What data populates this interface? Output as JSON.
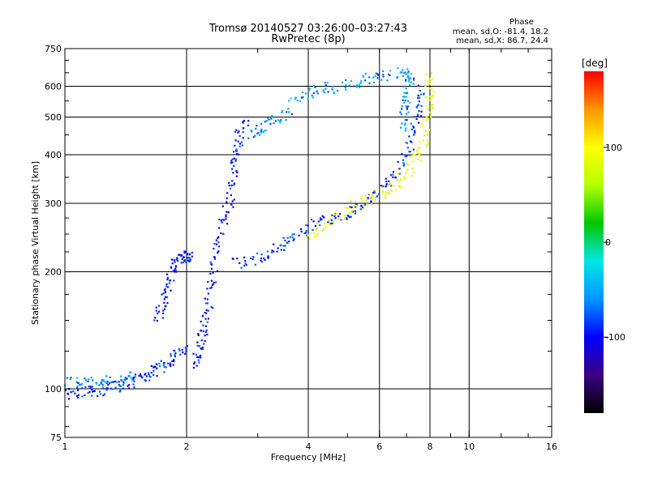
{
  "header": {
    "title_line1": "Tromsø 20140527 03:26:00–03:27:43",
    "title_line2": "RwPretec (8p)"
  },
  "phase_box": {
    "heading": "Phase",
    "line_o": "mean, sd,O: -81.4, 18.2",
    "line_x": "mean, sd,X: 86.7, 24.4"
  },
  "colorbar": {
    "label": "[deg]",
    "ticks": [
      "100",
      "0",
      "-100"
    ],
    "tick_values": [
      100,
      0,
      -100
    ],
    "range": [
      -180,
      180
    ],
    "colors": [
      "#000000",
      "#3c0082",
      "#0000ff",
      "#0096ff",
      "#00e6e6",
      "#00c800",
      "#b4ff00",
      "#ffff00",
      "#ff9600",
      "#ff0000"
    ]
  },
  "chart_data": {
    "type": "scatter",
    "title": "Tromsø 20140527 03:26:00–03:27:43",
    "subtitle": "RwPretec (8p)",
    "xlabel": "Frequency [MHz]",
    "ylabel": "Stationary phase Virtual Height [km]",
    "x_scale": "log",
    "y_scale": "log",
    "xlim": [
      1,
      16
    ],
    "ylim": [
      75,
      750
    ],
    "x_ticks": [
      1,
      2,
      4,
      6,
      8,
      10,
      16
    ],
    "y_ticks": [
      75,
      100,
      200,
      300,
      400,
      500,
      600,
      750
    ],
    "grid": true,
    "color_scale": "phase [deg]",
    "traces": [
      {
        "name_hint": "E / low trace",
        "phase": -90,
        "points": [
          [
            1.0,
            97
          ],
          [
            1.1,
            98
          ],
          [
            1.2,
            99
          ],
          [
            1.3,
            101
          ],
          [
            1.4,
            103
          ],
          [
            1.5,
            106
          ],
          [
            1.6,
            108
          ],
          [
            1.7,
            112
          ],
          [
            1.8,
            117
          ],
          [
            1.9,
            123
          ],
          [
            2.0,
            128
          ]
        ]
      },
      {
        "name_hint": "low trace upper edge",
        "phase": -60,
        "points": [
          [
            1.0,
            103
          ],
          [
            1.1,
            104
          ],
          [
            1.2,
            104
          ],
          [
            1.3,
            105
          ],
          [
            1.5,
            110
          ]
        ]
      },
      {
        "name_hint": "F1 cusp left",
        "phase": -95,
        "points": [
          [
            1.7,
            150
          ],
          [
            1.75,
            165
          ],
          [
            1.8,
            185
          ],
          [
            1.85,
            205
          ],
          [
            1.9,
            215
          ],
          [
            2.0,
            220
          ],
          [
            2.05,
            215
          ]
        ]
      },
      {
        "name_hint": "F1 column",
        "phase": -95,
        "points": [
          [
            2.1,
            115
          ],
          [
            2.15,
            125
          ],
          [
            2.2,
            140
          ],
          [
            2.25,
            160
          ],
          [
            2.3,
            185
          ],
          [
            2.35,
            220
          ],
          [
            2.45,
            260
          ],
          [
            2.55,
            300
          ],
          [
            2.6,
            350
          ],
          [
            2.65,
            400
          ],
          [
            2.7,
            450
          ],
          [
            2.8,
            500
          ]
        ]
      },
      {
        "name_hint": "F2 ordinary",
        "phase": -90,
        "points": [
          [
            2.6,
            210
          ],
          [
            3.0,
            215
          ],
          [
            3.3,
            225
          ],
          [
            3.6,
            240
          ],
          [
            4.0,
            258
          ],
          [
            4.5,
            275
          ],
          [
            5.0,
            285
          ],
          [
            5.5,
            300
          ],
          [
            6.0,
            320
          ],
          [
            6.5,
            355
          ],
          [
            7.0,
            400
          ],
          [
            7.3,
            460
          ],
          [
            7.5,
            530
          ],
          [
            7.6,
            600
          ]
        ]
      },
      {
        "name_hint": "F2 extraordinary",
        "phase": 90,
        "points": [
          [
            4.0,
            250
          ],
          [
            4.4,
            262
          ],
          [
            5.0,
            290
          ],
          [
            5.6,
            305
          ],
          [
            6.2,
            320
          ],
          [
            6.8,
            345
          ],
          [
            7.3,
            380
          ],
          [
            7.7,
            430
          ],
          [
            7.9,
            500
          ],
          [
            8.0,
            570
          ],
          [
            7.9,
            640
          ]
        ]
      },
      {
        "name_hint": "multi-hop trace",
        "phase": -60,
        "points": [
          [
            2.9,
            450
          ],
          [
            3.1,
            470
          ],
          [
            3.4,
            500
          ],
          [
            3.8,
            560
          ],
          [
            4.2,
            590
          ],
          [
            4.8,
            600
          ],
          [
            5.5,
            620
          ],
          [
            6.0,
            640
          ],
          [
            6.8,
            650
          ],
          [
            7.2,
            630
          ],
          [
            7.0,
            580
          ],
          [
            6.9,
            520
          ],
          [
            6.9,
            460
          ]
        ]
      }
    ],
    "annotations": []
  }
}
